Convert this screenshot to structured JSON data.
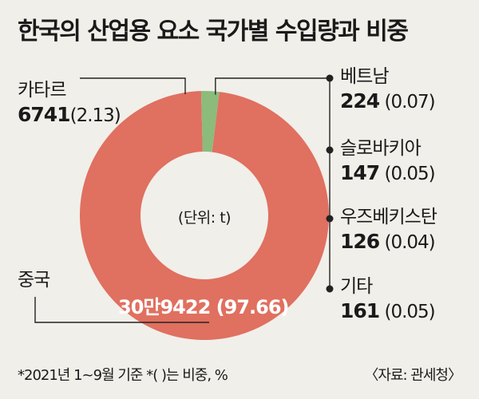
{
  "title": "한국의 산업용 요소 국가별 수입량과 비중",
  "unit_label": "(단위: t)",
  "footnote": "*2021년 1~9월 기준  *(  )는 비중, %",
  "source": "〈자료: 관세청〉",
  "colors": {
    "china": "#e07060",
    "others": "#8cbb7c",
    "background": "#f1efe9"
  },
  "chart_data": {
    "type": "pie",
    "title": "한국의 산업용 요소 국가별 수입량과 비중",
    "unit": "t",
    "slices": [
      {
        "label": "중국",
        "value": 309422,
        "value_text": "30만9422",
        "percent": 97.66,
        "percent_text": "(97.66)"
      },
      {
        "label": "카타르",
        "value": 6741,
        "value_text": "6741",
        "percent": 2.13,
        "percent_text": "(2.13)"
      },
      {
        "label": "베트남",
        "value": 224,
        "value_text": "224",
        "percent": 0.07,
        "percent_text": "(0.07)"
      },
      {
        "label": "슬로바키아",
        "value": 147,
        "value_text": "147",
        "percent": 0.05,
        "percent_text": "(0.05)"
      },
      {
        "label": "우즈베키스탄",
        "value": 126,
        "value_text": "126",
        "percent": 0.04,
        "percent_text": "(0.04)"
      },
      {
        "label": "기타",
        "value": 161,
        "value_text": "161",
        "percent": 0.05,
        "percent_text": "(0.05)"
      }
    ]
  }
}
